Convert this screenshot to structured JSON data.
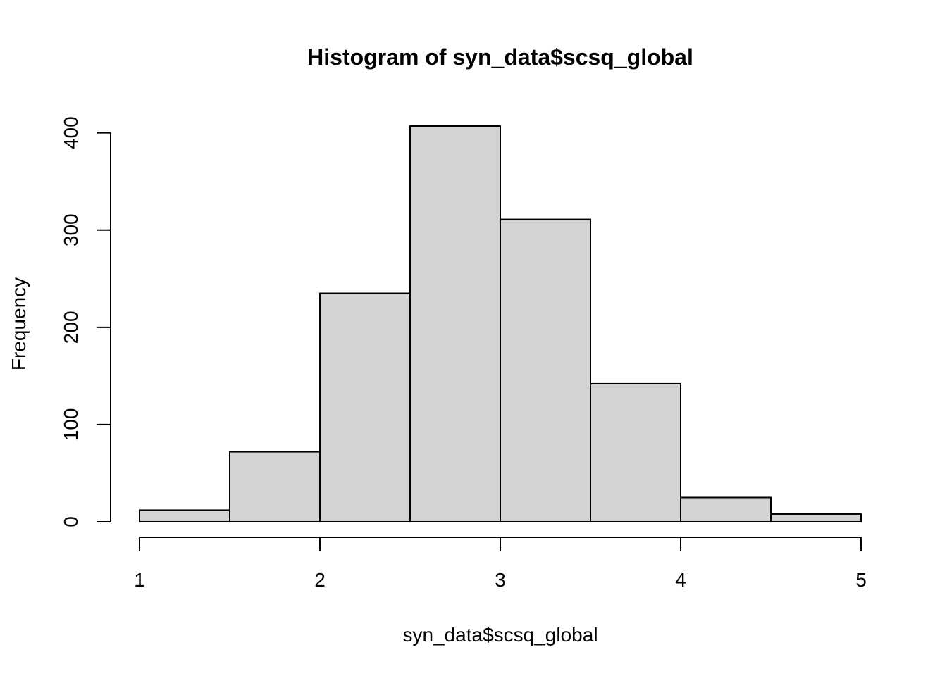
{
  "chart_data": {
    "type": "bar",
    "title": "Histogram of syn_data$scsq_global",
    "xlabel": "syn_data$scsq_global",
    "ylabel": "Frequency",
    "bins": [
      {
        "x0": 1.0,
        "x1": 1.5,
        "value": 12
      },
      {
        "x0": 1.5,
        "x1": 2.0,
        "value": 72
      },
      {
        "x0": 2.0,
        "x1": 2.5,
        "value": 235
      },
      {
        "x0": 2.5,
        "x1": 3.0,
        "value": 407
      },
      {
        "x0": 3.0,
        "x1": 3.5,
        "value": 311
      },
      {
        "x0": 3.5,
        "x1": 4.0,
        "value": 142
      },
      {
        "x0": 4.0,
        "x1": 4.5,
        "value": 25
      },
      {
        "x0": 4.5,
        "x1": 5.0,
        "value": 8
      }
    ],
    "xlim": [
      1,
      5
    ],
    "ylim": [
      0,
      407
    ],
    "xticks": [
      1,
      2,
      3,
      4,
      5
    ],
    "yticks": [
      0,
      100,
      200,
      300,
      400
    ],
    "grid": false,
    "legend": "none",
    "bar_color": "#d3d3d3",
    "edge_color": "#000000"
  }
}
